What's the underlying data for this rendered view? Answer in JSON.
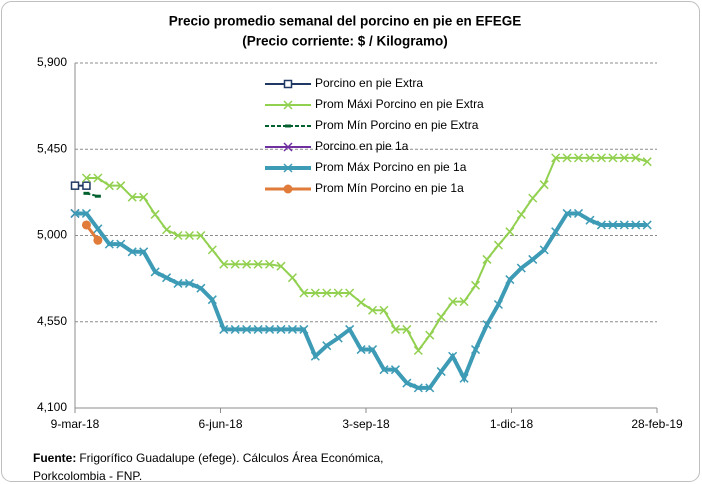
{
  "chart_data": {
    "type": "line",
    "title": "Precio promedio semanal del porcino en pie en EFEGE",
    "subtitle": "(Precio corriente: $ / Kilogramo)",
    "x": [
      "2018-03-09",
      "2018-03-16",
      "2018-03-23",
      "2018-03-30",
      "2018-04-06",
      "2018-04-13",
      "2018-04-20",
      "2018-04-27",
      "2018-05-04",
      "2018-05-11",
      "2018-05-18",
      "2018-05-25",
      "2018-06-01",
      "2018-06-08",
      "2018-06-15",
      "2018-06-22",
      "2018-06-29",
      "2018-07-06",
      "2018-07-13",
      "2018-07-20",
      "2018-07-27",
      "2018-08-03",
      "2018-08-10",
      "2018-08-17",
      "2018-08-24",
      "2018-08-31",
      "2018-09-07",
      "2018-09-14",
      "2018-09-21",
      "2018-09-28",
      "2018-10-05",
      "2018-10-12",
      "2018-10-19",
      "2018-10-26",
      "2018-11-02",
      "2018-11-09",
      "2018-11-16",
      "2018-11-23",
      "2018-11-30",
      "2018-12-07",
      "2018-12-14",
      "2018-12-21",
      "2018-12-28",
      "2019-01-04",
      "2019-01-11",
      "2019-01-18",
      "2019-01-25",
      "2019-02-01",
      "2019-02-08",
      "2019-02-15",
      "2019-02-22"
    ],
    "xlim": [
      "2018-03-09",
      "2019-02-28"
    ],
    "xticks": [
      {
        "value": "2018-03-09",
        "label": "9-mar-18"
      },
      {
        "value": "2018-06-06",
        "label": "6-jun-18"
      },
      {
        "value": "2018-09-03",
        "label": "3-sep-18"
      },
      {
        "value": "2018-12-01",
        "label": "1-dic-18"
      },
      {
        "value": "2019-02-28",
        "label": "28-feb-19"
      }
    ],
    "ylim": [
      4100,
      5900
    ],
    "yticks": [
      {
        "value": 4100,
        "label": "4,100"
      },
      {
        "value": 4550,
        "label": "4,550"
      },
      {
        "value": 5000,
        "label": "5,000"
      },
      {
        "value": 5450,
        "label": "5,450"
      },
      {
        "value": 5900,
        "label": "5,900"
      }
    ],
    "grid": true,
    "legend": "top-left",
    "series": [
      {
        "name": "Porcino en pie Extra",
        "color": "#1f3864",
        "marker": "square",
        "width": 2,
        "values": [
          5260,
          5260,
          null,
          null,
          null,
          null,
          null,
          null,
          null,
          null,
          null,
          null,
          null,
          null,
          null,
          null,
          null,
          null,
          null,
          null,
          null,
          null,
          null,
          null,
          null,
          null,
          null,
          null,
          null,
          null,
          null,
          null,
          null,
          null,
          null,
          null,
          null,
          null,
          null,
          null,
          null,
          null,
          null,
          null,
          null,
          null,
          null,
          null,
          null,
          null,
          null
        ]
      },
      {
        "name": "Prom Máxi Porcino en pie Extra",
        "color": "#92d050",
        "marker": "x",
        "width": 2,
        "values": [
          null,
          5300,
          5300,
          5260,
          5260,
          5200,
          5200,
          5110,
          5030,
          5000,
          5000,
          5000,
          4925,
          4850,
          4850,
          4850,
          4850,
          4850,
          4840,
          4780,
          4700,
          4700,
          4700,
          4700,
          4700,
          4650,
          4610,
          4610,
          4510,
          4510,
          4400,
          4480,
          4575,
          4655,
          4655,
          4740,
          4875,
          4950,
          5020,
          5110,
          5195,
          5265,
          5405,
          5405,
          5405,
          5405,
          5405,
          5405,
          5405,
          5405,
          5385
        ]
      },
      {
        "name": "Prom Mín Porcino en pie Extra",
        "color": "#00612f",
        "marker": "dash",
        "width": 2,
        "values": [
          null,
          5220,
          5205,
          null,
          null,
          null,
          null,
          null,
          null,
          null,
          null,
          null,
          null,
          null,
          null,
          null,
          null,
          null,
          null,
          null,
          null,
          null,
          null,
          null,
          null,
          null,
          null,
          null,
          null,
          null,
          null,
          null,
          null,
          null,
          null,
          null,
          null,
          null,
          null,
          null,
          null,
          null,
          null,
          null,
          null,
          null,
          null,
          null,
          null,
          null,
          null
        ]
      },
      {
        "name": "Porcino en pie 1a",
        "color": "#7030a0",
        "marker": "x",
        "width": 2,
        "values": [
          5115,
          null,
          null,
          null,
          null,
          null,
          null,
          null,
          null,
          null,
          null,
          null,
          null,
          null,
          null,
          null,
          null,
          null,
          null,
          null,
          null,
          null,
          null,
          null,
          null,
          null,
          null,
          null,
          null,
          null,
          null,
          null,
          null,
          null,
          null,
          null,
          null,
          null,
          null,
          null,
          null,
          null,
          null,
          null,
          null,
          null,
          null,
          null,
          null,
          null,
          null
        ]
      },
      {
        "name": "Prom Máx Porcino en pie 1a",
        "color": "#3d9bb5",
        "marker": "x",
        "width": 4,
        "values": [
          5115,
          5115,
          5035,
          4955,
          4955,
          4915,
          4915,
          4810,
          4780,
          4750,
          4750,
          4725,
          4665,
          4510,
          4510,
          4510,
          4510,
          4510,
          4510,
          4510,
          4510,
          4370,
          4425,
          4465,
          4510,
          4405,
          4405,
          4300,
          4300,
          4230,
          4205,
          4205,
          4290,
          4370,
          4255,
          4405,
          4535,
          4640,
          4770,
          4830,
          4875,
          4925,
          5020,
          5115,
          5115,
          5080,
          5055,
          5055,
          5055,
          5055,
          5055
        ]
      },
      {
        "name": "Prom Mín Porcino en pie 1a",
        "color": "#e07b39",
        "marker": "circle",
        "width": 3,
        "values": [
          null,
          5055,
          4975,
          null,
          null,
          null,
          null,
          null,
          null,
          null,
          null,
          null,
          null,
          null,
          null,
          null,
          null,
          null,
          null,
          null,
          null,
          null,
          null,
          null,
          null,
          null,
          null,
          null,
          null,
          null,
          null,
          null,
          null,
          null,
          null,
          null,
          null,
          null,
          null,
          null,
          null,
          null,
          null,
          null,
          null,
          null,
          null,
          null,
          null,
          null,
          null
        ]
      }
    ],
    "source": {
      "label": "Fuente:",
      "lines": [
        "Frigorífico Guadalupe (efege). Cálculos Área Económica,",
        "Porkcolombia - FNP."
      ]
    }
  }
}
